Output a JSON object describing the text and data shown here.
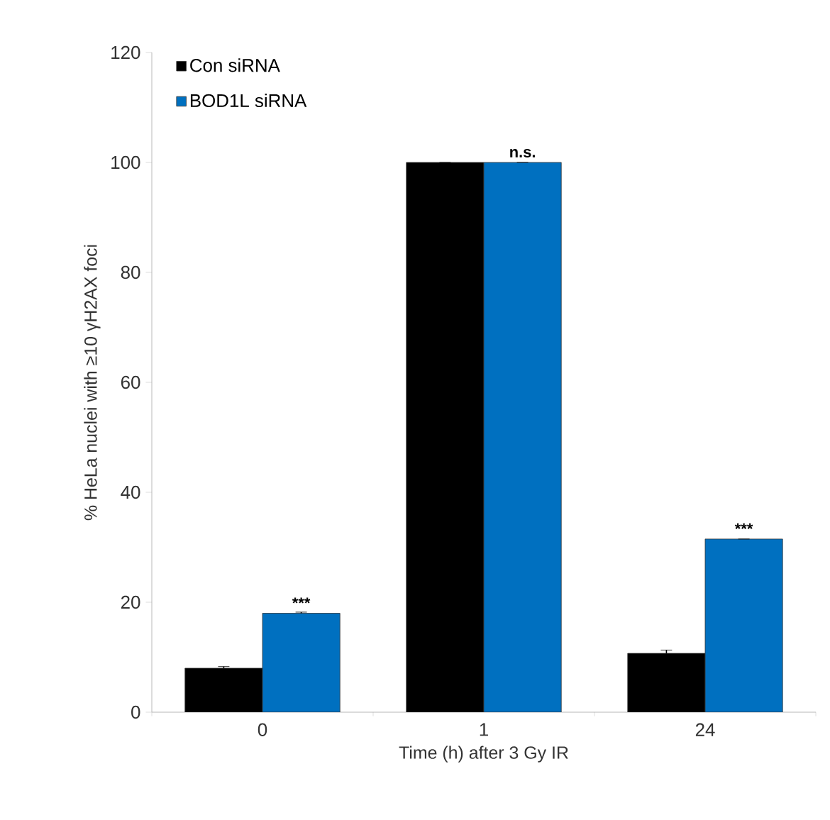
{
  "chart_data": {
    "type": "bar",
    "xlabel": "Time (h) after 3 Gy IR",
    "ylabel": "% HeLa nuclei with ≥10 γH2AX foci",
    "categories": [
      "0",
      "1",
      "24"
    ],
    "series": [
      {
        "name": "Con siRNA",
        "color": "#000000",
        "values": [
          8,
          100,
          10.7
        ],
        "errors": [
          0.3,
          null,
          0.6
        ]
      },
      {
        "name": "BOD1L siRNA",
        "color": "#0070c0",
        "values": [
          18,
          100,
          31.5
        ],
        "errors": [
          0.2,
          null,
          null
        ]
      }
    ],
    "annotations": [
      {
        "text": "***",
        "x": "0",
        "y": 18
      },
      {
        "text": "n.s.",
        "x": "1",
        "y": 100
      },
      {
        "text": "***",
        "x": "24",
        "y": 31.5
      }
    ],
    "ylim": [
      0,
      120
    ],
    "yticks": [
      0,
      20,
      40,
      60,
      80,
      100,
      120
    ],
    "legend": "top left",
    "grid": false
  }
}
